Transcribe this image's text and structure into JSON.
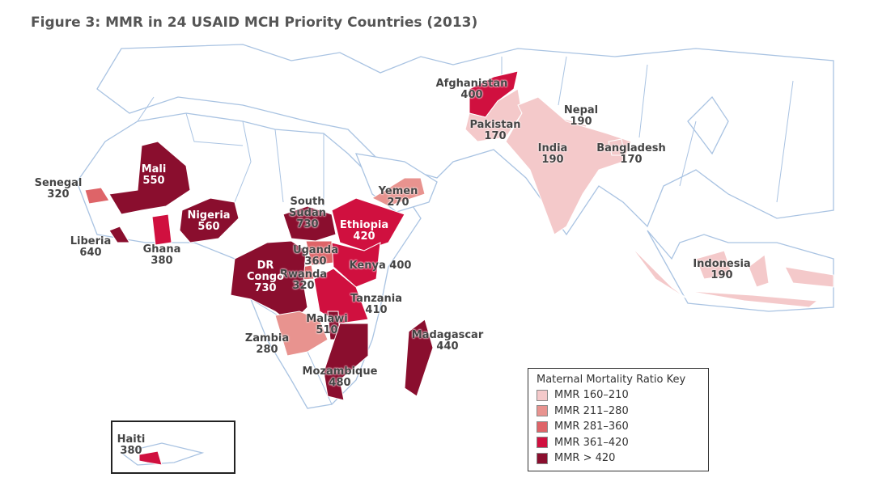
{
  "title": "Figure 3: MMR in 24 USAID MCH Priority Countries (2013)",
  "countries": [
    {
      "name": "Afghanistan",
      "mmr": 400,
      "color": "#d0103f"
    },
    {
      "name": "Pakistan",
      "mmr": 170,
      "color": "#f4c9ca"
    },
    {
      "name": "Nepal",
      "mmr": 190,
      "color": "#f4c9ca"
    },
    {
      "name": "India",
      "mmr": 190,
      "color": "#f4c9ca"
    },
    {
      "name": "Bangladesh",
      "mmr": 170,
      "color": "#f4c9ca"
    },
    {
      "name": "Indonesia",
      "mmr": 190,
      "color": "#f4c9ca"
    },
    {
      "name": "Yemen",
      "mmr": 270,
      "color": "#e8938f"
    },
    {
      "name": "Senegal",
      "mmr": 320,
      "color": "#de6468"
    },
    {
      "name": "Mali",
      "mmr": 550,
      "color": "#8a0e2e"
    },
    {
      "name": "Nigeria",
      "mmr": 560,
      "color": "#8a0e2e"
    },
    {
      "name": "Liberia",
      "mmr": 640,
      "color": "#8a0e2e"
    },
    {
      "name": "Ghana",
      "mmr": 380,
      "color": "#d0103f"
    },
    {
      "name": "South Sudan",
      "mmr": 730,
      "color": "#8a0e2e"
    },
    {
      "name": "Ethiopia",
      "mmr": 420,
      "color": "#d0103f"
    },
    {
      "name": "Uganda",
      "mmr": 360,
      "color": "#de6468"
    },
    {
      "name": "Kenya",
      "mmr": 400,
      "color": "#d0103f"
    },
    {
      "name": "Rwanda",
      "mmr": 320,
      "color": "#de6468"
    },
    {
      "name": "DR Congo",
      "mmr": 730,
      "color": "#8a0e2e"
    },
    {
      "name": "Tanzania",
      "mmr": 410,
      "color": "#d0103f"
    },
    {
      "name": "Malawi",
      "mmr": 510,
      "color": "#8a0e2e"
    },
    {
      "name": "Zambia",
      "mmr": 280,
      "color": "#e8938f"
    },
    {
      "name": "Madagascar",
      "mmr": 440,
      "color": "#8a0e2e"
    },
    {
      "name": "Mozambique",
      "mmr": 480,
      "color": "#8a0e2e"
    },
    {
      "name": "Haiti",
      "mmr": 380,
      "color": "#d0103f"
    }
  ],
  "legend": {
    "title": "Maternal Mortality Ratio Key",
    "items": [
      {
        "label": "MMR 160–210",
        "color": "#f4c9ca"
      },
      {
        "label": "MMR 211–280",
        "color": "#e8938f"
      },
      {
        "label": "MMR 281–360",
        "color": "#de6468"
      },
      {
        "label": "MMR 361–420",
        "color": "#d0103f"
      },
      {
        "label": "MMR > 420",
        "color": "#8a0e2e"
      }
    ]
  }
}
